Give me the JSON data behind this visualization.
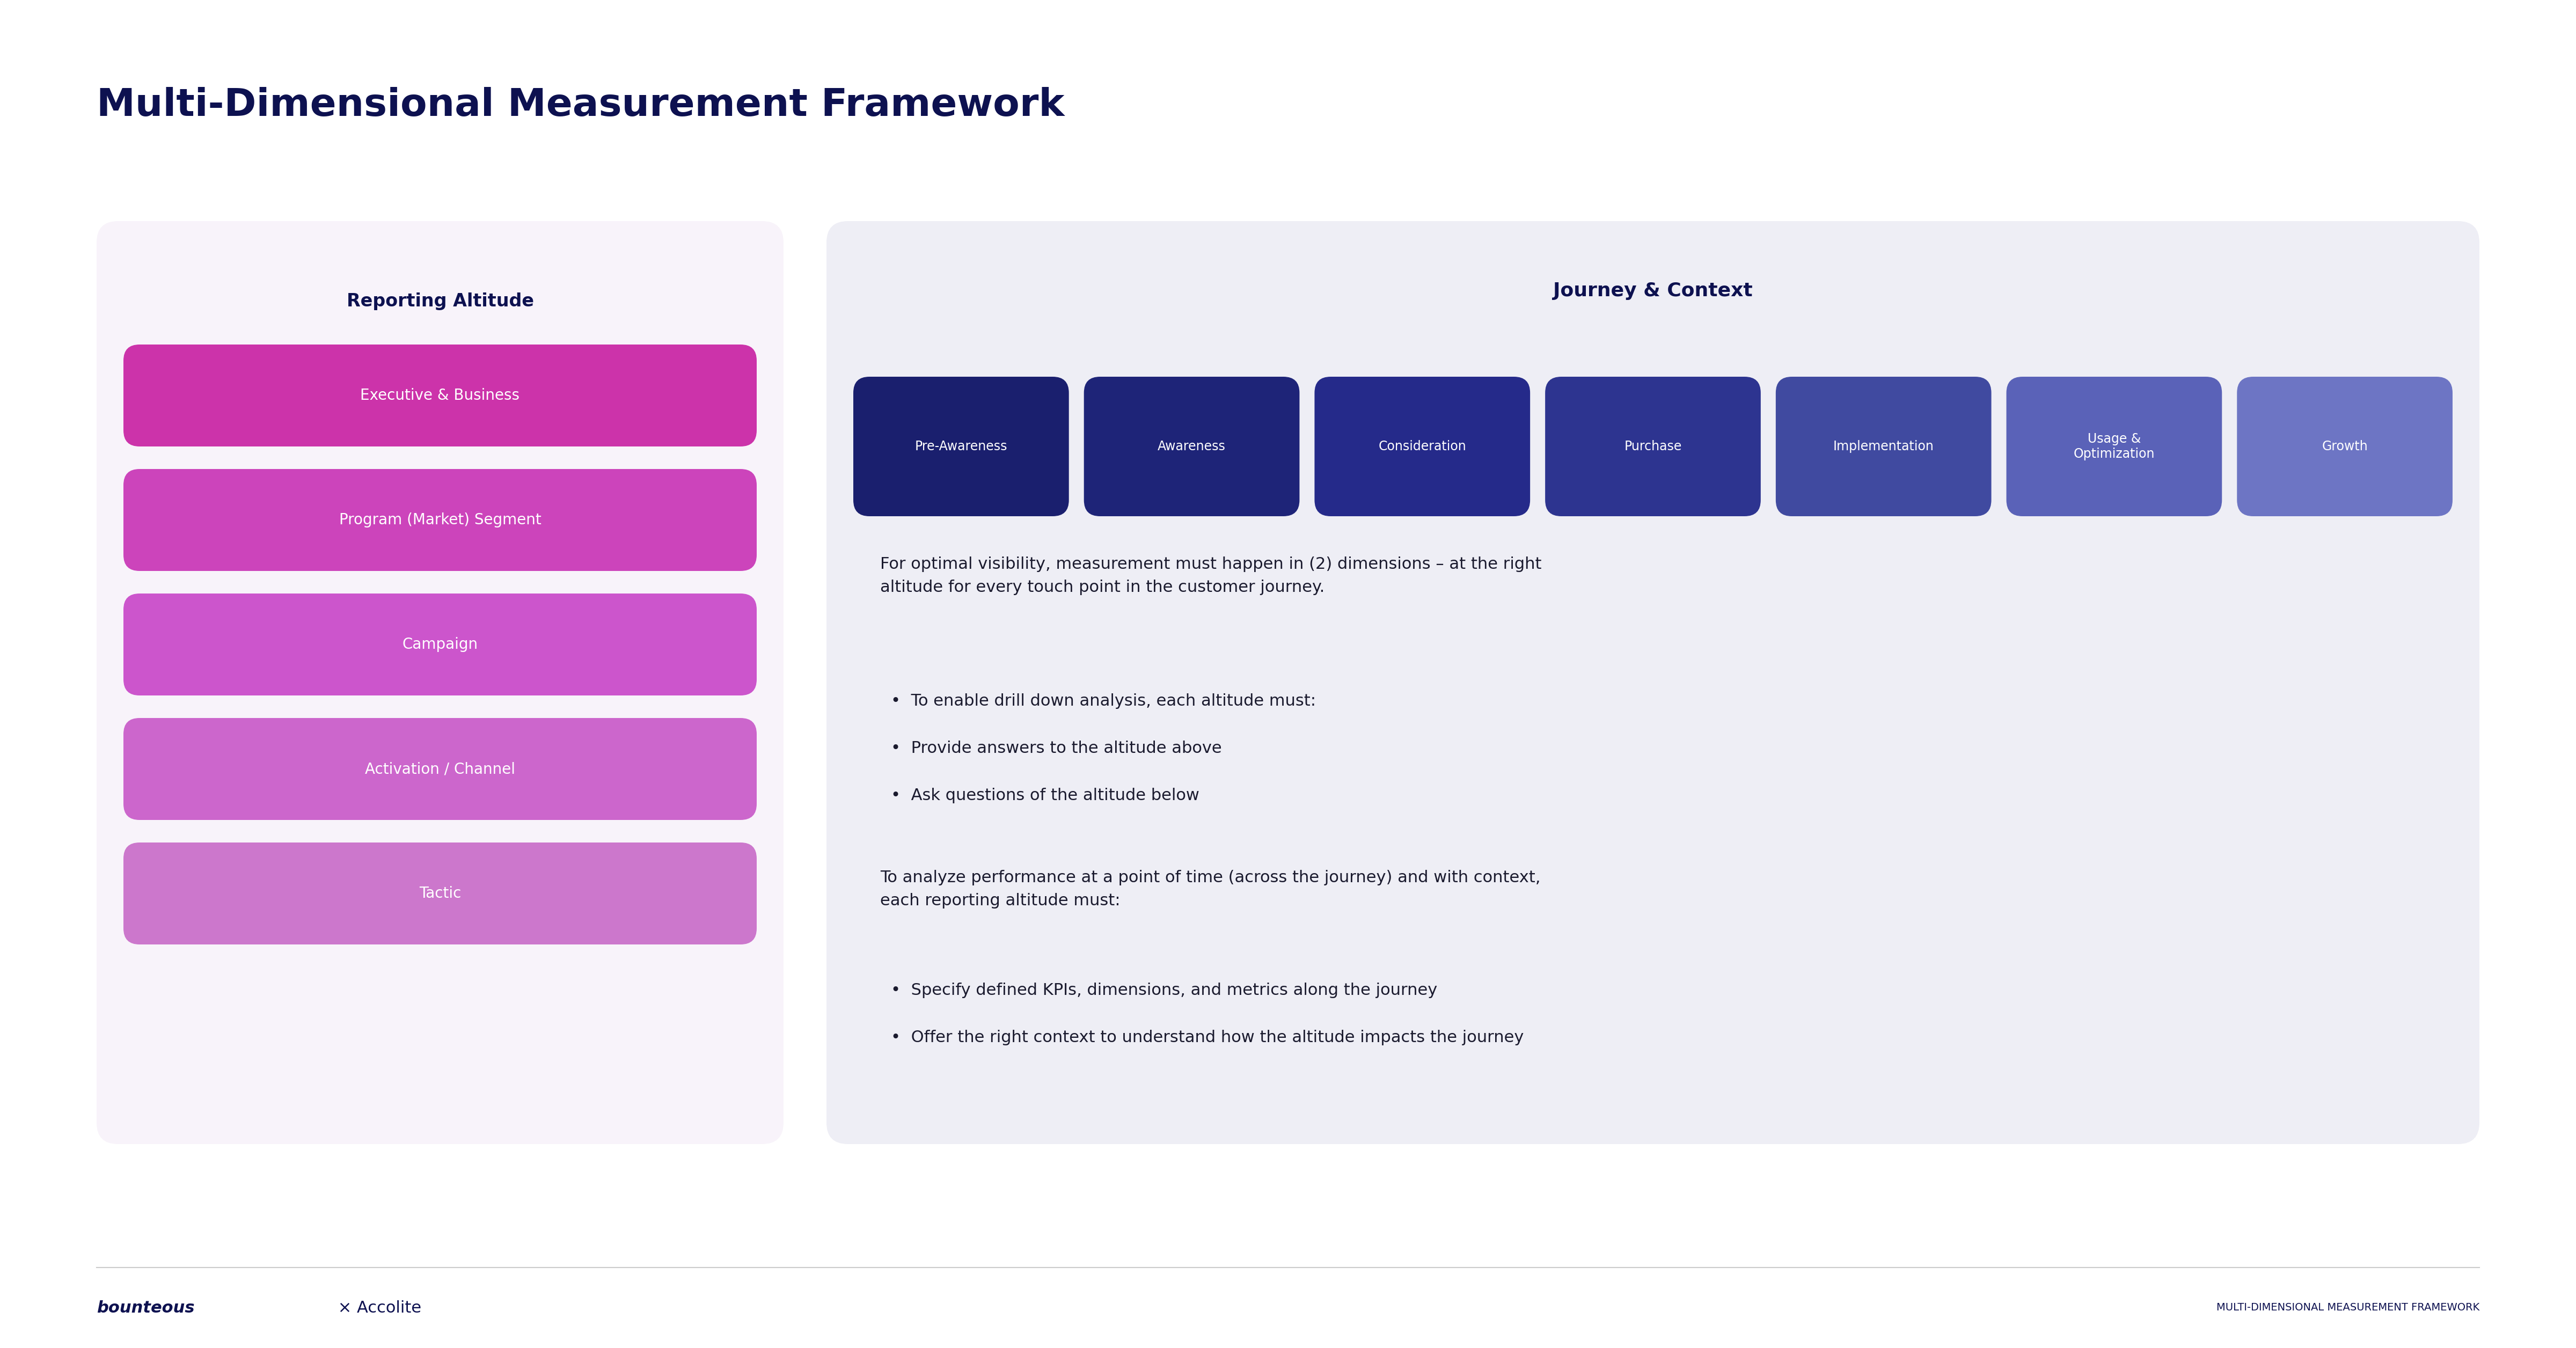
{
  "title": "Multi-Dimensional Measurement Framework",
  "title_color": "#0d1150",
  "title_fontsize": 52,
  "bg_color": "#ffffff",
  "left_panel_color": "#f8f3fa",
  "right_panel_color": "#eeeef5",
  "left_panel_label": "Reporting Altitude",
  "left_panel_label_color": "#0d1150",
  "journey_label": "Journey & Context",
  "journey_label_color": "#0d1150",
  "journey_boxes": [
    {
      "label": "Pre-Awareness",
      "color": "#1a1f6e"
    },
    {
      "label": "Awareness",
      "color": "#1e2478"
    },
    {
      "label": "Consideration",
      "color": "#252a8a"
    },
    {
      "label": "Purchase",
      "color": "#2d3490"
    },
    {
      "label": "Implementation",
      "color": "#404aa0"
    },
    {
      "label": "Usage &\nOptimization",
      "color": "#5a62b8"
    },
    {
      "label": "Growth",
      "color": "#6d75c4"
    }
  ],
  "altitude_boxes": [
    {
      "label": "Executive & Business",
      "color": "#cc33aa"
    },
    {
      "label": "Program (Market) Segment",
      "color": "#cc44bb"
    },
    {
      "label": "Campaign",
      "color": "#cc55cc"
    },
    {
      "label": "Activation / Channel",
      "color": "#cc66cc"
    },
    {
      "label": "Tactic",
      "color": "#cc77cc"
    }
  ],
  "body_text_1": "For optimal visibility, measurement must happen in (2) dimensions – at the right\naltitude for every touch point in the customer journey.",
  "bullet_list_1": [
    "To enable drill down analysis, each altitude must:",
    "Provide answers to the altitude above",
    "Ask questions of the altitude below"
  ],
  "body_text_2": "To analyze performance at a point of time (across the journey) and with context,\neach reporting altitude must:",
  "bullet_list_2": [
    "Specify defined KPIs, dimensions, and metrics along the journey",
    "Offer the right context to understand how the altitude impacts the journey"
  ],
  "body_text_color": "#1a1a2e",
  "body_fontsize": 22,
  "footer_left_bold": "bounteous",
  "footer_left_rest": " × Accolite",
  "footer_right": "MULTI-DIMENSIONAL MEASUREMENT FRAMEWORK",
  "footer_color": "#0d1150"
}
